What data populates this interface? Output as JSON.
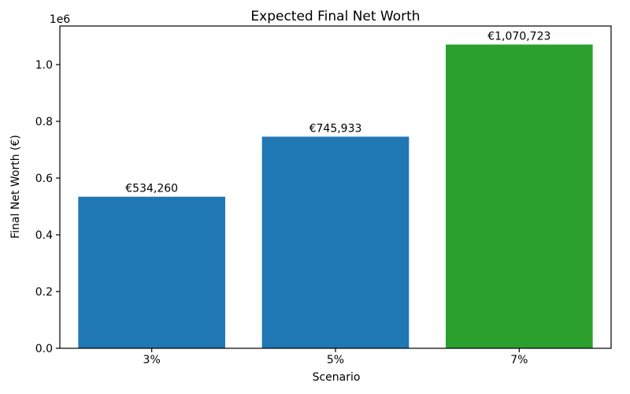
{
  "figure": {
    "background_color": "#ffffff"
  },
  "chart_data": {
    "type": "bar",
    "title": "Expected Final Net Worth",
    "xlabel": "Scenario",
    "ylabel": "Final Net Worth (€)",
    "categories": [
      "3%",
      "5%",
      "7%"
    ],
    "values": [
      534260,
      745933,
      1070723
    ],
    "bar_labels": [
      "€534,260",
      "€745,933",
      "€1,070,723"
    ],
    "bar_colors": [
      "#1f77b4",
      "#1f77b4",
      "#2ca02c"
    ],
    "ylim": [
      0,
      1136000
    ],
    "yticks": [
      0,
      200000,
      400000,
      600000,
      800000,
      1000000
    ],
    "ytick_labels": [
      "0.0",
      "0.2",
      "0.4",
      "0.6",
      "0.8",
      "1.0"
    ],
    "y_offset_label": "1e6",
    "grid": false,
    "legend": null
  }
}
